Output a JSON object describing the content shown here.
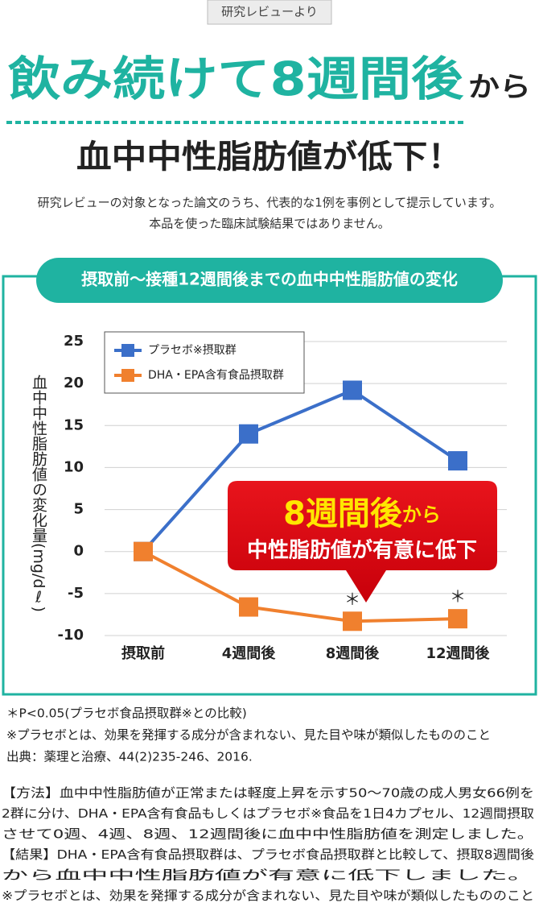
{
  "badge": "研究レビューより",
  "headline": {
    "main": "飲み続けて8週間後",
    "suffix": "から"
  },
  "subheadline": "血中中性脂肪値が低下！",
  "description": [
    "研究レビューの対象となった論文のうち、代表的な1例を事例として提示しています。",
    "本品を使った臨床試験結果ではありません。"
  ],
  "chart_data": {
    "type": "line",
    "title": "摂取前〜接種12週間後までの血中中性脂肪値の変化",
    "y_label": "血中中性脂肪値の変化量(mg/dℓ)",
    "categories": [
      "摂取前",
      "4週間後",
      "8週間後",
      "12週間後"
    ],
    "series": [
      {
        "name": "プラセボ※摂取群",
        "color": "#3b6fc9",
        "values": [
          0,
          14,
          19.2,
          10.8
        ]
      },
      {
        "name": "DHA・EPA含有食品摂取群",
        "color": "#f0802e",
        "values": [
          0,
          -6.6,
          -8.3,
          -8.0
        ]
      }
    ],
    "significance_marks": [
      null,
      null,
      "＊",
      "＊"
    ],
    "callout": {
      "title": "8週間後",
      "title_suffix": "から",
      "text": "中性脂肪値が有意に低下"
    },
    "ylim": [
      -10,
      25
    ],
    "yticks": [
      -10,
      -5,
      0,
      5,
      10,
      15,
      20,
      25
    ],
    "grid": true,
    "legend": "upper left"
  },
  "footnotes": [
    "＊P<0.05(プラセボ食品摂取群※との比較)",
    "※プラセボとは、効果を発揮する成分が含まれない、見た目や味が類似したもののこと",
    "出典：薬理と治療、44(2)235-246、2016."
  ],
  "method": [
    "【方法】血中中性脂肪値が正常または軽度上昇を示す50～70歳の成人男女66例を",
    "2群に分け、DHA・EPA含有食品もしくはプラセボ※食品を1日4カプセル、12週間摂取",
    "させて0週、4週、8週、12週間後に血中中性脂肪値を測定しました。",
    "【結果】DHA・EPA含有食品摂取群は、プラセボ食品摂取群と比較して、摂取8週間後",
    "から血中中性脂肪値が有意に低下しました。",
    "※プラセボとは、効果を発揮する成分が含まれない、見た目や味が類似したもののこと"
  ]
}
